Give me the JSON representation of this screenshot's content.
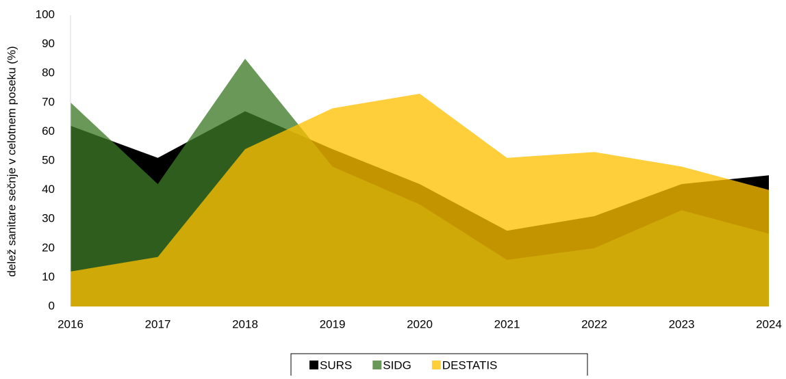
{
  "chart_data": {
    "type": "area",
    "y_label": "delež sanitare sečnje v celotnem  poseku (%)",
    "categories": [
      2016,
      2017,
      2018,
      2019,
      2020,
      2021,
      2022,
      2023,
      2024
    ],
    "series": [
      {
        "name": "SURS",
        "color": "#000000",
        "opacity": 1,
        "values": [
          62,
          51,
          67,
          54,
          42,
          26,
          31,
          42,
          45
        ]
      },
      {
        "name": "SIDG",
        "color": "#3c7927",
        "opacity": 0.77,
        "values": [
          70,
          42,
          85,
          48,
          35,
          16,
          20,
          33,
          25
        ]
      },
      {
        "name": "DESTATIS",
        "color": "#ffc000",
        "opacity": 0.77,
        "values": [
          12,
          17,
          54,
          68,
          73,
          51,
          53,
          48,
          40
        ]
      }
    ],
    "ylim": [
      0,
      100
    ],
    "yticks": [
      0,
      10,
      20,
      30,
      40,
      50,
      60,
      70,
      80,
      90,
      100
    ],
    "grid": false
  }
}
